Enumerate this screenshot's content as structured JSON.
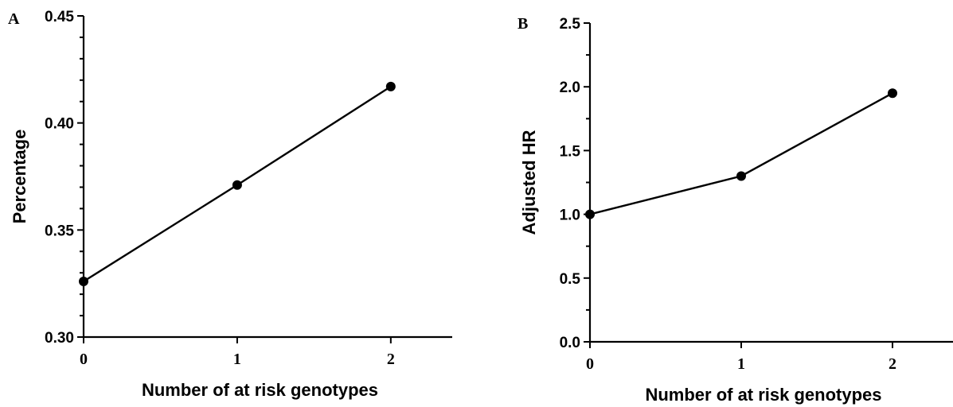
{
  "chart_data": [
    {
      "panel": "A",
      "type": "line",
      "xlabel": "Number of at risk genotypes",
      "ylabel": "Percentage",
      "x": [
        0,
        1,
        2
      ],
      "x_tick_labels": [
        "0",
        "1",
        "2"
      ],
      "values": [
        0.326,
        0.371,
        0.417
      ],
      "ylim": [
        0.3,
        0.45
      ],
      "xlim": [
        0,
        2.4
      ],
      "y_tick_values": [
        0.3,
        0.35,
        0.4,
        0.45
      ],
      "y_tick_labels": [
        "0.30",
        "0.35",
        "0.40",
        "0.45"
      ],
      "grid": false
    },
    {
      "panel": "B",
      "type": "line",
      "xlabel": "Number of at risk genotypes",
      "ylabel": "Adjusted HR",
      "x": [
        0,
        1,
        2
      ],
      "x_tick_labels": [
        "0",
        "1",
        "2"
      ],
      "values": [
        1.0,
        1.3,
        1.95
      ],
      "ylim": [
        0.0,
        2.5
      ],
      "xlim": [
        0,
        2.4
      ],
      "y_tick_values": [
        0.0,
        0.5,
        1.0,
        1.5,
        2.0,
        2.5
      ],
      "y_tick_labels": [
        "0.0",
        "0.5",
        "1.0",
        "1.5",
        "2.0",
        "2.5"
      ],
      "grid": false
    }
  ]
}
